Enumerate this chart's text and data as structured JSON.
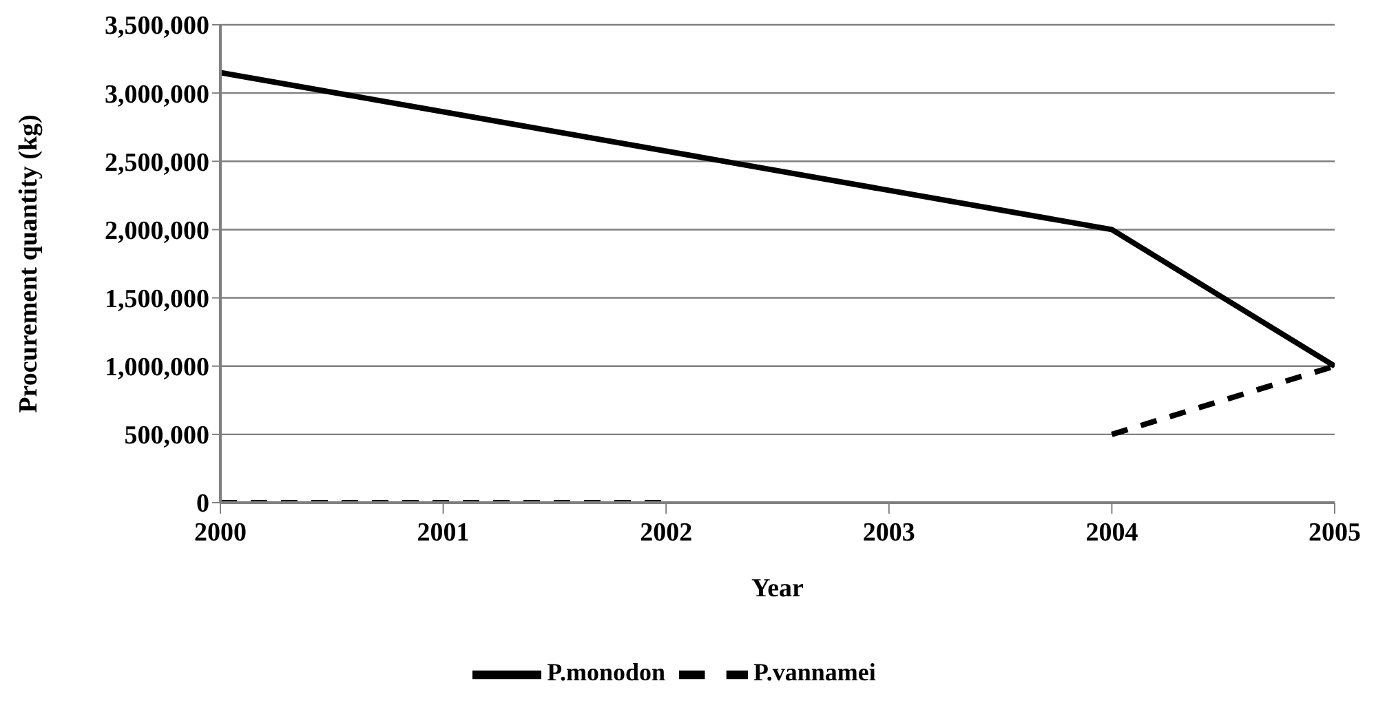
{
  "chart_data": {
    "type": "line",
    "xlabel": "Year",
    "ylabel": "Procurement quantity (kg)",
    "xlim": [
      2000,
      2005
    ],
    "xticks": [
      2000,
      2001,
      2002,
      2003,
      2004,
      2005
    ],
    "ylim": [
      0,
      3500000
    ],
    "yticks": [
      0,
      {
        "value": 500000,
        "label": "500,000"
      },
      {
        "value": 1000000,
        "label": "1,000,000"
      },
      {
        "value": 1500000,
        "label": "1,500,000"
      },
      {
        "value": 2000000,
        "label": "2,000,000"
      },
      {
        "value": 2500000,
        "label": "2,500,000"
      },
      {
        "value": 3000000,
        "label": "3,000,000"
      },
      {
        "value": 3500000,
        "label": "3,500,000"
      }
    ],
    "grid": "y",
    "legend": "bottom",
    "marker": "none",
    "series": [
      {
        "name": "P.monodon",
        "color": "#000000",
        "line_style": "solid",
        "x": [
          2000,
          2004,
          2005
        ],
        "values": [
          3150000,
          2000000,
          1000000
        ]
      },
      {
        "name": "P.vannamei",
        "color": "#000000",
        "line_style": "dashed",
        "x": [
          2000,
          2001,
          2002,
          2003,
          2004,
          2005
        ],
        "values": [
          0,
          0,
          0,
          null,
          500000,
          1000000
        ]
      }
    ]
  }
}
